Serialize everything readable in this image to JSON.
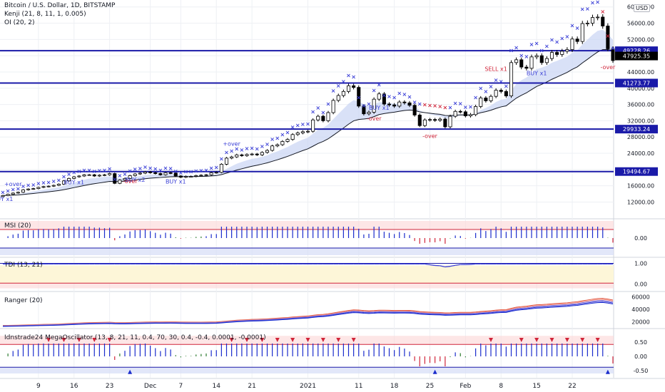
{
  "legend": {
    "line1": "Bitcoin / U.S. Dollar, 1D, BITSTAMP",
    "line2": "Kenji (21, 8, 11, 1, 0.005)",
    "line3": "OI (20, 2)",
    "currency": "USD"
  },
  "panes": {
    "msi": "MSI (20)",
    "tdi": "TDI (13, 21)",
    "ranger": "Ranger (20)",
    "mega": "Idnstrade24 MegaOscillator (13, 8, 21, 11, 0.4, 70, 30, 0.4, -0.4, 0.0001, -0.0001)"
  },
  "colors": {
    "hline": "#1a1aa8",
    "cross": "#3a3fd6",
    "bar_up": "#1a2ccc",
    "bar_down": "#d0253a",
    "bar_neutral": "#2e7d32",
    "band": "#c9d4f4",
    "candle_up": "#ffffff",
    "candle_down": "#000000",
    "grid": "#eef0f4"
  },
  "chart_data": [
    {
      "type": "candlestick",
      "pane": "price",
      "y_ticks": [
        12000,
        16000,
        20000,
        24000,
        28000,
        32000,
        36000,
        40000,
        44000,
        48000,
        52000,
        56000,
        60000
      ],
      "ylim": [
        10500,
        61000
      ],
      "x_ticks": [
        {
          "label": "9",
          "i": 7
        },
        {
          "label": "16",
          "i": 14
        },
        {
          "label": "23",
          "i": 21
        },
        {
          "label": "Dec",
          "i": 29
        },
        {
          "label": "7",
          "i": 35
        },
        {
          "label": "14",
          "i": 42
        },
        {
          "label": "21",
          "i": 49
        },
        {
          "label": "2021",
          "i": 60
        },
        {
          "label": "11",
          "i": 70
        },
        {
          "label": "18",
          "i": 77
        },
        {
          "label": "25",
          "i": 84
        },
        {
          "label": "Feb",
          "i": 91
        },
        {
          "label": "8",
          "i": 98
        },
        {
          "label": "15",
          "i": 105
        },
        {
          "label": "22",
          "i": 112
        }
      ],
      "closes": [
        13600,
        13900,
        14200,
        14400,
        15000,
        15200,
        15300,
        15600,
        15800,
        15900,
        16100,
        16400,
        17200,
        17800,
        18200,
        18400,
        18700,
        18700,
        18400,
        18600,
        18700,
        19000,
        16600,
        17400,
        17800,
        18500,
        18900,
        19100,
        19400,
        19200,
        19000,
        18700,
        19200,
        19100,
        18400,
        18100,
        18300,
        18300,
        18500,
        18600,
        18700,
        19200,
        19300,
        21300,
        22800,
        23100,
        23600,
        23400,
        23700,
        23800,
        23600,
        24200,
        24700,
        25800,
        26100,
        26900,
        27400,
        28600,
        29000,
        29300,
        29400,
        32200,
        33100,
        32000,
        34000,
        37000,
        38200,
        39200,
        40600,
        40200,
        35600,
        33700,
        34100,
        37300,
        38600,
        36100,
        35900,
        35600,
        36600,
        36400,
        35800,
        33400,
        30800,
        32200,
        32300,
        32100,
        32400,
        30500,
        33100,
        34300,
        34200,
        33200,
        33500,
        35500,
        37600,
        36900,
        38000,
        39500,
        39200,
        38100,
        46300,
        47000,
        45200,
        44900,
        47700,
        48000,
        46300,
        47300,
        48800,
        48300,
        49100,
        49500,
        52100,
        51500,
        55900,
        56000,
        57400,
        57500,
        55300,
        49700,
        46800
      ],
      "horizontal_lines": [
        49228.26,
        41273.77,
        29933.24,
        19494.67
      ],
      "price_labels": [
        "49228.26",
        "47925.35",
        "41273.77",
        "29933.24",
        "19494.67"
      ],
      "annotations": [
        {
          "text": "BUY x1",
          "i": 0,
          "pos": "below"
        },
        {
          "text": "+over",
          "i": 2,
          "pos": "above"
        },
        {
          "text": "BUY x1",
          "i": 14,
          "pos": "below"
        },
        {
          "text": "BUY x2",
          "i": 26,
          "pos": "below"
        },
        {
          "text": "-over",
          "i": 25,
          "pos": "below"
        },
        {
          "text": "BUY x1",
          "i": 34,
          "pos": "below"
        },
        {
          "text": "+over",
          "i": 45,
          "pos": "above"
        },
        {
          "text": "BUY x1",
          "i": 74,
          "pos": "below"
        },
        {
          "text": "-over",
          "i": 73,
          "pos": "below2"
        },
        {
          "text": "-over",
          "i": 84,
          "pos": "below2"
        },
        {
          "text": "SELL x1",
          "i": 97,
          "pos": "above"
        },
        {
          "text": "BUY x1",
          "i": 105,
          "pos": "below"
        },
        {
          "text": "-over",
          "i": 119,
          "pos": "below"
        }
      ]
    },
    {
      "type": "bar",
      "pane": "msi",
      "y_ticks": [
        0.0
      ],
      "ylim": [
        -1,
        1
      ]
    },
    {
      "type": "line",
      "pane": "tdi",
      "y_ticks": [
        1.0,
        0.0
      ],
      "ylim": [
        -0.25,
        1.1
      ]
    },
    {
      "type": "line",
      "pane": "ranger",
      "y_ticks": [
        60000,
        40000,
        20000
      ],
      "ylim": [
        15000,
        63000
      ]
    },
    {
      "type": "bar",
      "pane": "mega",
      "y_ticks": [
        0.5,
        0.0,
        -0.5
      ],
      "ylim": [
        -0.65,
        0.8
      ]
    }
  ]
}
